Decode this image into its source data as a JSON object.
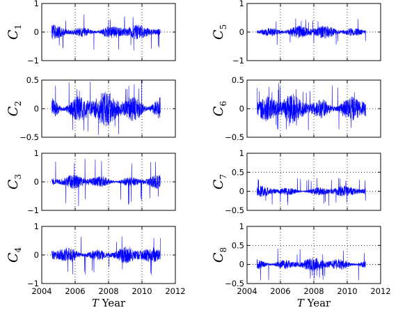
{
  "chart_data": [
    {
      "type": "line",
      "ylabel": "C",
      "ysub": "1",
      "ylim": [
        -1,
        1
      ],
      "yticks": [
        "1",
        "0",
        "−1"
      ],
      "series_color": "#0000ff",
      "amp": 0.22,
      "peak": 0.65,
      "seed": 1
    },
    {
      "type": "line",
      "ylabel": "C",
      "ysub": "2",
      "ylim": [
        -0.5,
        0.5
      ],
      "yticks": [
        "0.5",
        "0",
        "−0.5"
      ],
      "series_color": "#0000ff",
      "amp": 0.25,
      "peak": 0.5,
      "seed": 2
    },
    {
      "type": "line",
      "ylabel": "C",
      "ysub": "3",
      "ylim": [
        -1,
        1
      ],
      "yticks": [
        "1",
        "0",
        "−1"
      ],
      "series_color": "#0000ff",
      "amp": 0.2,
      "peak": 0.85,
      "seed": 3
    },
    {
      "type": "line",
      "ylabel": "C",
      "ysub": "4",
      "ylim": [
        -1,
        1
      ],
      "yticks": [
        "1",
        "0",
        "−1"
      ],
      "series_color": "#0000ff",
      "amp": 0.25,
      "peak": 0.7,
      "seed": 4
    },
    {
      "type": "line",
      "ylabel": "C",
      "ysub": "5",
      "ylim": [
        -1,
        1
      ],
      "yticks": [
        "1",
        "0",
        "−1"
      ],
      "series_color": "#0000ff",
      "amp": 0.2,
      "peak": 0.5,
      "seed": 5
    },
    {
      "type": "line",
      "ylabel": "C",
      "ysub": "6",
      "ylim": [
        -0.5,
        0.5
      ],
      "yticks": [
        "0.5",
        "0",
        "−0.5"
      ],
      "series_color": "#0000ff",
      "amp": 0.22,
      "peak": 0.45,
      "seed": 6
    },
    {
      "type": "line",
      "ylabel": "C",
      "ysub": "7",
      "ylim": [
        -0.5,
        1
      ],
      "yticks": [
        "1",
        "0.5",
        "0",
        "−0.5"
      ],
      "series_color": "#0000ff",
      "amp": 0.12,
      "peak": 0.38,
      "seed": 7
    },
    {
      "type": "line",
      "ylabel": "C",
      "ysub": "8",
      "ylim": [
        -0.5,
        1
      ],
      "yticks": [
        "1",
        "0.5",
        "0",
        "−0.5"
      ],
      "series_color": "#0000ff",
      "amp": 0.15,
      "peak": 0.42,
      "seed": 8
    }
  ],
  "x_range": [
    2004,
    2012
  ],
  "data_range": [
    2004.6,
    2011.1
  ],
  "x_ticks": [
    "2004",
    "2006",
    "2008",
    "2010",
    "2012"
  ],
  "x_label_var": "T",
  "x_label_word": "Year"
}
